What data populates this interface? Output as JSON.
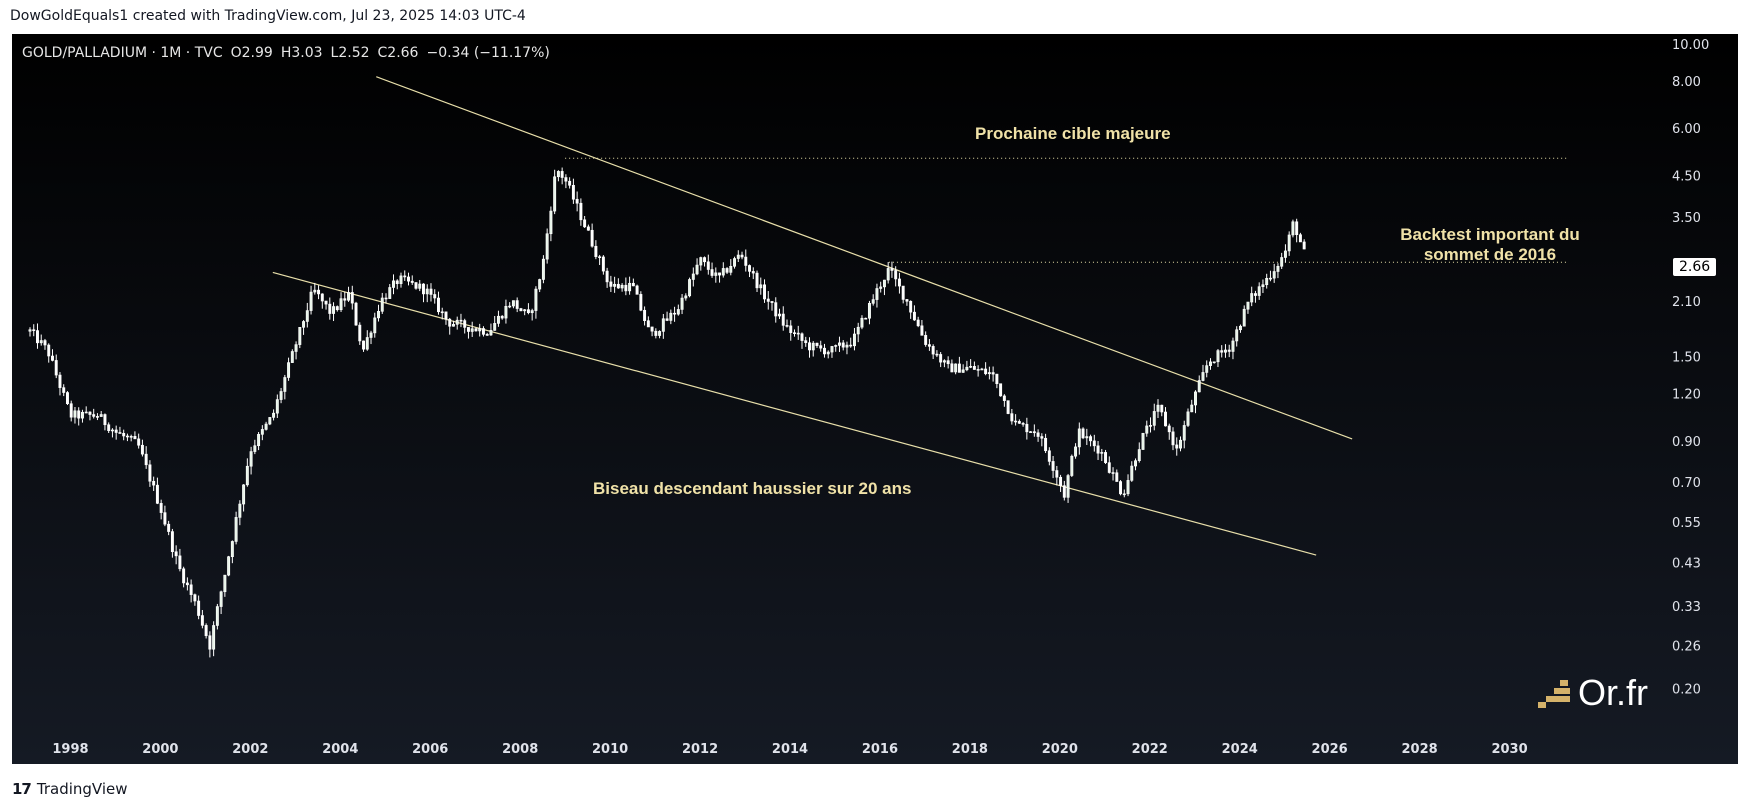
{
  "header": {
    "text": "DowGoldEquals1 created with TradingView.com, Jul 23, 2025 14:03 UTC-4"
  },
  "footer": {
    "logo": "17",
    "brand": "TradingView"
  },
  "legend": {
    "symbol": "GOLD/PALLADIUM · 1M · TVC",
    "open": "O2.99",
    "high": "H3.03",
    "low": "L2.52",
    "close": "C2.66",
    "change": "−0.34 (−11.17%)"
  },
  "watermark": {
    "text": "Or.fr",
    "icon": "gold-bars-icon"
  },
  "annotations": {
    "next_target": "Prochaine cible majeure",
    "backtest_line1": "Backtest important du",
    "backtest_line2": "sommet de 2016",
    "wedge": "Biseau descendant haussier sur 20 ans"
  },
  "colors": {
    "background_top": "#000000",
    "background_bottom": "#151a24",
    "candle_up": "#e8f5e9",
    "candle_down": "#ffffff",
    "trendline": "#e8dfaa",
    "annotation_text": "#f0e2a8",
    "axis_text": "#e0e3eb"
  },
  "chart_data": {
    "type": "candlestick",
    "y_scale": "log",
    "ylim": [
      0.18,
      10.5
    ],
    "xlim": [
      1996.7,
      2031.3
    ],
    "x_ticks": [
      "1998",
      "2000",
      "2002",
      "2004",
      "2006",
      "2008",
      "2010",
      "2012",
      "2014",
      "2016",
      "2018",
      "2020",
      "2022",
      "2024",
      "2026",
      "2028",
      "2030"
    ],
    "y_ticks": [
      "10.00",
      "8.00",
      "6.00",
      "4.50",
      "3.50",
      "2.10",
      "1.50",
      "1.20",
      "0.90",
      "0.70",
      "0.55",
      "0.43",
      "0.33",
      "0.26",
      "0.20"
    ],
    "last_price": "2.66",
    "price_anchors": [
      [
        1997.1,
        1.75
      ],
      [
        1997.5,
        1.55
      ],
      [
        1998.0,
        1.05
      ],
      [
        1998.6,
        1.05
      ],
      [
        1999.0,
        0.95
      ],
      [
        1999.5,
        0.88
      ],
      [
        2000.0,
        0.6
      ],
      [
        2000.4,
        0.42
      ],
      [
        2000.8,
        0.33
      ],
      [
        2001.1,
        0.26
      ],
      [
        2001.6,
        0.5
      ],
      [
        2002.0,
        0.85
      ],
      [
        2002.5,
        1.05
      ],
      [
        2003.0,
        1.6
      ],
      [
        2003.4,
        2.25
      ],
      [
        2003.8,
        1.95
      ],
      [
        2004.2,
        2.2
      ],
      [
        2004.5,
        1.55
      ],
      [
        2004.9,
        2.1
      ],
      [
        2005.3,
        2.4
      ],
      [
        2005.9,
        2.25
      ],
      [
        2006.4,
        1.85
      ],
      [
        2006.8,
        1.8
      ],
      [
        2007.3,
        1.75
      ],
      [
        2007.8,
        2.1
      ],
      [
        2008.2,
        1.9
      ],
      [
        2008.5,
        2.6
      ],
      [
        2008.8,
        4.7
      ],
      [
        2009.0,
        4.4
      ],
      [
        2009.5,
        3.2
      ],
      [
        2010.0,
        2.3
      ],
      [
        2010.5,
        2.3
      ],
      [
        2010.9,
        1.7
      ],
      [
        2011.5,
        2.0
      ],
      [
        2012.0,
        2.7
      ],
      [
        2012.4,
        2.4
      ],
      [
        2012.9,
        2.8
      ],
      [
        2013.4,
        2.2
      ],
      [
        2013.9,
        1.8
      ],
      [
        2014.4,
        1.6
      ],
      [
        2014.9,
        1.55
      ],
      [
        2015.4,
        1.65
      ],
      [
        2015.9,
        2.2
      ],
      [
        2016.2,
        2.55
      ],
      [
        2016.6,
        2.1
      ],
      [
        2017.0,
        1.65
      ],
      [
        2017.5,
        1.4
      ],
      [
        2018.0,
        1.4
      ],
      [
        2018.5,
        1.35
      ],
      [
        2019.0,
        1.0
      ],
      [
        2019.5,
        0.95
      ],
      [
        2019.9,
        0.75
      ],
      [
        2020.1,
        0.65
      ],
      [
        2020.4,
        0.95
      ],
      [
        2020.9,
        0.85
      ],
      [
        2021.4,
        0.65
      ],
      [
        2021.8,
        0.9
      ],
      [
        2022.2,
        1.1
      ],
      [
        2022.6,
        0.85
      ],
      [
        2022.9,
        1.1
      ],
      [
        2023.3,
        1.45
      ],
      [
        2023.8,
        1.6
      ],
      [
        2024.2,
        2.1
      ],
      [
        2024.6,
        2.4
      ],
      [
        2025.0,
        2.8
      ],
      [
        2025.2,
        3.4
      ],
      [
        2025.5,
        2.66
      ]
    ],
    "upper_trendline": [
      [
        2004.8,
        8.2
      ],
      [
        2026.5,
        0.91
      ]
    ],
    "lower_trendline": [
      [
        2002.5,
        2.5
      ],
      [
        2025.7,
        0.45
      ]
    ],
    "resistance_levels": [
      {
        "value": 5.0,
        "from": 2009.0,
        "to": 2031.3
      },
      {
        "value": 2.66,
        "from": 2016.2,
        "to": 2031.3
      }
    ]
  }
}
